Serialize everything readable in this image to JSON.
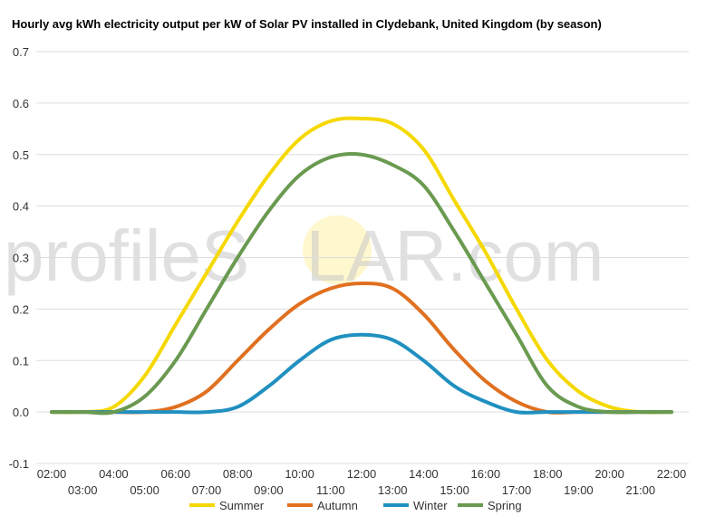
{
  "title": "Hourly avg kWh electricity output per kW of Solar PV installed in Clydebank, United Kingdom (by season)",
  "watermark": {
    "left": "profileS",
    "sun": "O",
    "right": "LAR.com"
  },
  "chart_data": {
    "type": "line",
    "title": "Hourly avg kWh electricity output per kW of Solar PV installed in Clydebank, United Kingdom (by season)",
    "xlabel": "",
    "ylabel": "",
    "ylim": [
      -0.1,
      0.7
    ],
    "yticks": [
      -0.1,
      0.0,
      0.1,
      0.2,
      0.3,
      0.4,
      0.5,
      0.6,
      0.7
    ],
    "ytick_labels": [
      "-0.1",
      "0.0",
      "0.1",
      "0.2",
      "0.3",
      "0.4",
      "0.5",
      "0.6",
      "0.7"
    ],
    "x": [
      "02:00",
      "03:00",
      "04:00",
      "05:00",
      "06:00",
      "07:00",
      "08:00",
      "09:00",
      "10:00",
      "11:00",
      "12:00",
      "13:00",
      "14:00",
      "15:00",
      "16:00",
      "17:00",
      "18:00",
      "19:00",
      "20:00",
      "21:00",
      "22:00"
    ],
    "grid": true,
    "legend_position": "bottom",
    "series": [
      {
        "name": "Summer",
        "color": "#f5d800",
        "values": [
          0.0,
          0.0,
          0.01,
          0.07,
          0.17,
          0.27,
          0.37,
          0.46,
          0.53,
          0.565,
          0.57,
          0.56,
          0.51,
          0.41,
          0.31,
          0.2,
          0.1,
          0.04,
          0.01,
          0.0,
          0.0
        ]
      },
      {
        "name": "Autumn",
        "color": "#e07020",
        "values": [
          0.0,
          0.0,
          0.0,
          0.0,
          0.01,
          0.04,
          0.1,
          0.16,
          0.21,
          0.24,
          0.25,
          0.24,
          0.19,
          0.12,
          0.06,
          0.02,
          0.0,
          0.0,
          0.0,
          0.0,
          0.0
        ]
      },
      {
        "name": "Winter",
        "color": "#2090c0",
        "values": [
          0.0,
          0.0,
          0.0,
          0.0,
          0.0,
          0.0,
          0.01,
          0.05,
          0.1,
          0.14,
          0.15,
          0.14,
          0.1,
          0.05,
          0.02,
          0.0,
          0.0,
          0.0,
          0.0,
          0.0,
          0.0
        ]
      },
      {
        "name": "Spring",
        "color": "#6a9a50",
        "values": [
          0.0,
          0.0,
          0.0,
          0.03,
          0.1,
          0.2,
          0.3,
          0.39,
          0.46,
          0.495,
          0.5,
          0.48,
          0.44,
          0.35,
          0.25,
          0.15,
          0.05,
          0.01,
          0.0,
          0.0,
          0.0
        ]
      }
    ]
  }
}
